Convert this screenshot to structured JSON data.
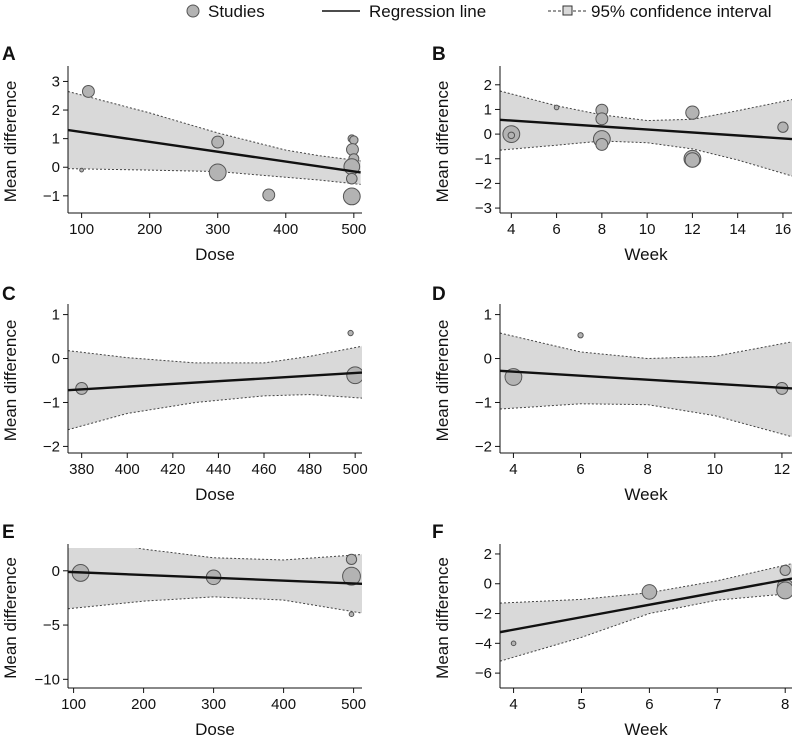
{
  "legend": {
    "studies_label": "Studies",
    "regression_label": "Regression line",
    "ci_label": "95% confidence interval",
    "colors": {
      "band": "#d9d9d9",
      "point_fill": "#b3b3b3",
      "point_stroke": "#555555",
      "line": "#111111"
    }
  },
  "chart_data": [
    {
      "panel": "A",
      "type": "scatter",
      "xlabel": "Dose",
      "ylabel": "Mean difference",
      "xlim": [
        80,
        512
      ],
      "ylim": [
        -1.6,
        3.4
      ],
      "xticks": [
        100,
        200,
        300,
        400,
        500
      ],
      "yticks": [
        -1,
        0,
        1,
        2,
        3
      ],
      "points": [
        {
          "x": 110,
          "y": 2.65,
          "w": 2
        },
        {
          "x": 100,
          "y": -0.1,
          "w": 0.2
        },
        {
          "x": 300,
          "y": 0.88,
          "w": 2
        },
        {
          "x": 300,
          "y": -0.18,
          "w": 4
        },
        {
          "x": 375,
          "y": -0.97,
          "w": 2
        },
        {
          "x": 497,
          "y": 1.0,
          "w": 0.8
        },
        {
          "x": 500,
          "y": 0.95,
          "w": 1
        },
        {
          "x": 498,
          "y": 0.62,
          "w": 2
        },
        {
          "x": 500,
          "y": 0.3,
          "w": 1.4
        },
        {
          "x": 497,
          "y": 0.02,
          "w": 3.5
        },
        {
          "x": 497,
          "y": -0.4,
          "w": 1.6
        },
        {
          "x": 497,
          "y": -1.02,
          "w": 4
        }
      ],
      "regression": {
        "x": [
          80,
          510
        ],
        "y": [
          1.3,
          -0.18
        ]
      },
      "ci_upper": {
        "x": [
          80,
          200,
          300,
          400,
          450,
          510
        ],
        "y": [
          2.65,
          1.9,
          1.2,
          0.6,
          0.4,
          0.22
        ]
      },
      "ci_lower": {
        "x": [
          80,
          200,
          300,
          400,
          450,
          510
        ],
        "y": [
          -0.05,
          -0.1,
          -0.15,
          -0.35,
          -0.45,
          -0.6
        ]
      }
    },
    {
      "panel": "B",
      "type": "scatter",
      "xlabel": "Week",
      "ylabel": "Mean difference",
      "xlim": [
        3.5,
        16.4
      ],
      "ylim": [
        -3.2,
        2.6
      ],
      "xticks": [
        4,
        6,
        8,
        10,
        12,
        14,
        16
      ],
      "yticks": [
        -3,
        -2,
        -1,
        0,
        1,
        2
      ],
      "points": [
        {
          "x": 4,
          "y": 0.0,
          "w": 4
        },
        {
          "x": 4,
          "y": -0.05,
          "w": 0.6
        },
        {
          "x": 6,
          "y": 1.08,
          "w": 0.3
        },
        {
          "x": 8,
          "y": 0.97,
          "w": 2
        },
        {
          "x": 8,
          "y": 0.62,
          "w": 2
        },
        {
          "x": 8,
          "y": -0.2,
          "w": 4
        },
        {
          "x": 8,
          "y": -0.42,
          "w": 2
        },
        {
          "x": 12,
          "y": 0.87,
          "w": 2.5
        },
        {
          "x": 12,
          "y": -1.0,
          "w": 4
        },
        {
          "x": 12,
          "y": -1.05,
          "w": 3
        },
        {
          "x": 16,
          "y": 0.28,
          "w": 1.5
        }
      ],
      "regression": {
        "x": [
          3.5,
          16.4
        ],
        "y": [
          0.58,
          -0.2
        ]
      },
      "ci_upper": {
        "x": [
          3.5,
          6,
          8,
          10,
          12,
          14,
          16.4
        ],
        "y": [
          1.75,
          1.15,
          0.78,
          0.55,
          0.6,
          0.95,
          1.4
        ]
      },
      "ci_lower": {
        "x": [
          3.5,
          6,
          8,
          10,
          12,
          14,
          16.4
        ],
        "y": [
          -0.65,
          -0.45,
          -0.28,
          -0.35,
          -0.6,
          -1.05,
          -1.7
        ]
      }
    },
    {
      "panel": "C",
      "type": "scatter",
      "xlabel": "Dose",
      "ylabel": "Mean difference",
      "xlim": [
        374,
        503
      ],
      "ylim": [
        -2.15,
        1.15
      ],
      "xticks": [
        380,
        400,
        420,
        440,
        460,
        480,
        500
      ],
      "yticks": [
        -2,
        -1,
        0,
        1
      ],
      "points": [
        {
          "x": 380,
          "y": -0.68,
          "w": 2
        },
        {
          "x": 498,
          "y": 0.58,
          "w": 0.4
        },
        {
          "x": 500,
          "y": -0.38,
          "w": 4
        }
      ],
      "regression": {
        "x": [
          374,
          503
        ],
        "y": [
          -0.72,
          -0.32
        ]
      },
      "ci_upper": {
        "x": [
          374,
          400,
          430,
          460,
          480,
          503
        ],
        "y": [
          0.18,
          0.02,
          -0.1,
          -0.1,
          0.05,
          0.28
        ]
      },
      "ci_lower": {
        "x": [
          374,
          400,
          430,
          460,
          480,
          503
        ],
        "y": [
          -1.62,
          -1.25,
          -1.0,
          -0.85,
          -0.82,
          -0.9
        ]
      }
    },
    {
      "panel": "D",
      "type": "scatter",
      "xlabel": "Week",
      "ylabel": "Mean difference",
      "xlim": [
        3.6,
        12.3
      ],
      "ylim": [
        -2.15,
        1.15
      ],
      "xticks": [
        4,
        6,
        8,
        10,
        12
      ],
      "yticks": [
        -2,
        -1,
        0,
        1
      ],
      "points": [
        {
          "x": 4,
          "y": -0.42,
          "w": 4
        },
        {
          "x": 6,
          "y": 0.53,
          "w": 0.4
        },
        {
          "x": 12,
          "y": -0.68,
          "w": 2
        }
      ],
      "regression": {
        "x": [
          3.6,
          12.3
        ],
        "y": [
          -0.28,
          -0.68
        ]
      },
      "ci_upper": {
        "x": [
          3.6,
          6,
          8,
          10,
          12.3
        ],
        "y": [
          0.58,
          0.15,
          0.0,
          0.05,
          0.38
        ]
      },
      "ci_lower": {
        "x": [
          3.6,
          6,
          8,
          10,
          12.3
        ],
        "y": [
          -1.15,
          -1.03,
          -1.05,
          -1.3,
          -1.78
        ]
      }
    },
    {
      "panel": "E",
      "type": "scatter",
      "xlabel": "Dose",
      "ylabel": "Mean difference",
      "xlim": [
        92,
        512
      ],
      "ylim": [
        -10.8,
        2.1
      ],
      "xticks": [
        100,
        200,
        300,
        400,
        500
      ],
      "yticks": [
        -10,
        -5,
        0
      ],
      "points": [
        {
          "x": 110,
          "y": -0.2,
          "w": 4
        },
        {
          "x": 300,
          "y": -0.6,
          "w": 3
        },
        {
          "x": 497,
          "y": 1.05,
          "w": 1.5
        },
        {
          "x": 497,
          "y": -0.5,
          "w": 4.5
        },
        {
          "x": 497,
          "y": -4.0,
          "w": 0.3
        }
      ],
      "regression": {
        "x": [
          92,
          512
        ],
        "y": [
          -0.1,
          -1.2
        ]
      },
      "ci_upper": {
        "x": [
          92,
          200,
          300,
          400,
          512
        ],
        "y": [
          3.3,
          2.0,
          1.2,
          1.0,
          1.5
        ]
      },
      "ci_lower": {
        "x": [
          92,
          200,
          300,
          400,
          512
        ],
        "y": [
          -3.5,
          -2.8,
          -2.4,
          -2.7,
          -3.9
        ]
      }
    },
    {
      "panel": "F",
      "type": "scatter",
      "xlabel": "Week",
      "ylabel": "Mean difference",
      "xlim": [
        3.8,
        8.1
      ],
      "ylim": [
        -7.0,
        2.4
      ],
      "xticks": [
        4,
        5,
        6,
        7,
        8
      ],
      "yticks": [
        -6,
        -4,
        -2,
        0,
        2
      ],
      "points": [
        {
          "x": 4,
          "y": -4.0,
          "w": 0.3
        },
        {
          "x": 6,
          "y": -0.55,
          "w": 3
        },
        {
          "x": 8,
          "y": 0.9,
          "w": 1.5
        },
        {
          "x": 8,
          "y": -0.2,
          "w": 3.5
        },
        {
          "x": 8,
          "y": -0.45,
          "w": 4
        }
      ],
      "regression": {
        "x": [
          3.8,
          8.1
        ],
        "y": [
          -3.25,
          0.35
        ]
      },
      "ci_upper": {
        "x": [
          3.8,
          5,
          6,
          7,
          8.1
        ],
        "y": [
          -1.3,
          -1.05,
          -0.6,
          0.2,
          1.35
        ]
      },
      "ci_lower": {
        "x": [
          3.8,
          5,
          6,
          7,
          8.1
        ],
        "y": [
          -5.2,
          -3.6,
          -2.0,
          -1.1,
          -0.65
        ]
      }
    }
  ]
}
